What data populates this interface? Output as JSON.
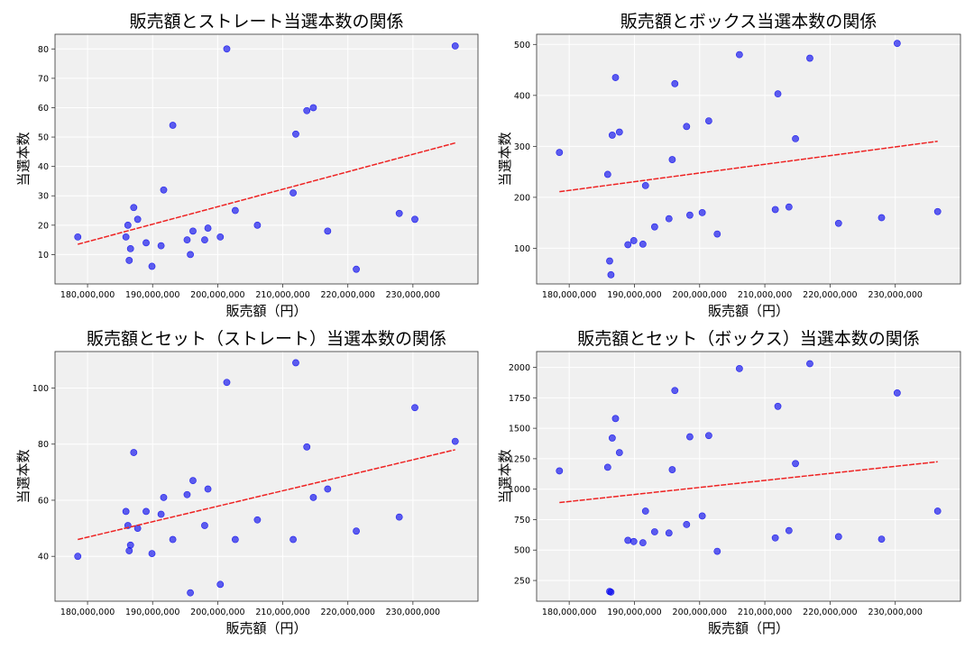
{
  "chart_data": [
    {
      "type": "scatter",
      "title": "販売額とストレート当選本数の関係",
      "xlabel": "販売額（円）",
      "ylabel": "当選本数",
      "xlim": [
        175000000,
        240000000
      ],
      "ylim": [
        0,
        85
      ],
      "xticks": [
        180000000,
        190000000,
        200000000,
        210000000,
        220000000,
        230000000
      ],
      "xtick_labels": [
        "180,000,000",
        "190,000,000",
        "200,000,000",
        "210,000,000",
        "220,000,000",
        "230,000,000"
      ],
      "yticks": [
        10,
        20,
        30,
        40,
        50,
        60,
        70,
        80
      ],
      "ytick_labels": [
        "10",
        "20",
        "30",
        "40",
        "50",
        "60",
        "70",
        "80"
      ],
      "grid": true,
      "point_color": "#0000ee",
      "trend_color": "#ee2222",
      "background": "#f0f0f0",
      "x": [
        178500000,
        185900000,
        186200000,
        186400000,
        186600000,
        187100000,
        187700000,
        189000000,
        189900000,
        191300000,
        191700000,
        193100000,
        195300000,
        195800000,
        196200000,
        198000000,
        198500000,
        200400000,
        201400000,
        202700000,
        206100000,
        211600000,
        212000000,
        213700000,
        214700000,
        216900000,
        221300000,
        227900000,
        230300000,
        236500000
      ],
      "y": [
        16,
        16,
        20,
        8,
        12,
        26,
        22,
        14,
        6,
        13,
        32,
        54,
        15,
        10,
        18,
        15,
        19,
        16,
        80,
        25,
        20,
        31,
        51,
        59,
        60,
        18,
        5,
        24,
        22,
        81
      ],
      "trend": {
        "x": [
          178500000,
          236500000
        ],
        "y": [
          13.5,
          48
        ]
      }
    },
    {
      "type": "scatter",
      "title": "販売額とボックス当選本数の関係",
      "xlabel": "販売額（円）",
      "ylabel": "当選本数",
      "xlim": [
        175000000,
        240000000
      ],
      "ylim": [
        30,
        520
      ],
      "xticks": [
        180000000,
        190000000,
        200000000,
        210000000,
        220000000,
        230000000
      ],
      "xtick_labels": [
        "180,000,000",
        "190,000,000",
        "200,000,000",
        "210,000,000",
        "220,000,000",
        "230,000,000"
      ],
      "yticks": [
        100,
        200,
        300,
        400,
        500
      ],
      "ytick_labels": [
        "100",
        "200",
        "300",
        "400",
        "500"
      ],
      "grid": true,
      "point_color": "#0000ee",
      "trend_color": "#ee2222",
      "background": "#f0f0f0",
      "x": [
        178500000,
        185900000,
        186200000,
        186400000,
        186600000,
        187100000,
        187700000,
        189000000,
        189900000,
        191300000,
        191700000,
        193100000,
        195300000,
        195800000,
        196200000,
        198000000,
        198500000,
        200400000,
        201400000,
        202700000,
        206100000,
        211600000,
        212000000,
        213700000,
        214700000,
        216900000,
        221300000,
        227900000,
        230300000,
        236500000
      ],
      "y": [
        288,
        245,
        75,
        48,
        322,
        435,
        328,
        107,
        115,
        108,
        223,
        142,
        158,
        274,
        423,
        339,
        165,
        170,
        350,
        128,
        480,
        176,
        403,
        181,
        315,
        473,
        149,
        160,
        502,
        172
      ],
      "trend": {
        "x": [
          178500000,
          236500000
        ],
        "y": [
          211,
          310
        ]
      }
    },
    {
      "type": "scatter",
      "title": "販売額とセット（ストレート）当選本数の関係",
      "xlabel": "販売額（円）",
      "ylabel": "当選本数",
      "xlim": [
        175000000,
        240000000
      ],
      "ylim": [
        24,
        113
      ],
      "xticks": [
        180000000,
        190000000,
        200000000,
        210000000,
        220000000,
        230000000
      ],
      "xtick_labels": [
        "180,000,000",
        "190,000,000",
        "200,000,000",
        "210,000,000",
        "220,000,000",
        "230,000,000"
      ],
      "yticks": [
        40,
        60,
        80,
        100
      ],
      "ytick_labels": [
        "40",
        "60",
        "80",
        "100"
      ],
      "grid": true,
      "point_color": "#0000ee",
      "trend_color": "#ee2222",
      "background": "#f0f0f0",
      "x": [
        178500000,
        185900000,
        186200000,
        186400000,
        186600000,
        187100000,
        187700000,
        189000000,
        189900000,
        191300000,
        191700000,
        193100000,
        195300000,
        195800000,
        196200000,
        198000000,
        198500000,
        200400000,
        201400000,
        202700000,
        206100000,
        211600000,
        212000000,
        213700000,
        214700000,
        216900000,
        221300000,
        227900000,
        230300000,
        236500000
      ],
      "y": [
        40,
        56,
        51,
        42,
        44,
        77,
        50,
        56,
        41,
        55,
        61,
        46,
        62,
        27,
        67,
        51,
        64,
        30,
        102,
        46,
        53,
        46,
        109,
        79,
        61,
        64,
        49,
        54,
        93,
        81
      ],
      "trend": {
        "x": [
          178500000,
          236500000
        ],
        "y": [
          46,
          78
        ]
      }
    },
    {
      "type": "scatter",
      "title": "販売額とセット（ボックス）当選本数の関係",
      "xlabel": "販売額（円）",
      "ylabel": "当選本数",
      "xlim": [
        175000000,
        240000000
      ],
      "ylim": [
        80,
        2130
      ],
      "xticks": [
        180000000,
        190000000,
        200000000,
        210000000,
        220000000,
        230000000
      ],
      "xtick_labels": [
        "180,000,000",
        "190,000,000",
        "200,000,000",
        "210,000,000",
        "220,000,000",
        "230,000,000"
      ],
      "yticks": [
        250,
        500,
        750,
        1000,
        1250,
        1500,
        1750,
        2000
      ],
      "ytick_labels": [
        "250",
        "500",
        "750",
        "1000",
        "1250",
        "1500",
        "1750",
        "2000"
      ],
      "grid": true,
      "point_color": "#0000ee",
      "trend_color": "#ee2222",
      "background": "#f0f0f0",
      "x": [
        178500000,
        185900000,
        186200000,
        186400000,
        186600000,
        187100000,
        187700000,
        189000000,
        189900000,
        191300000,
        191700000,
        193100000,
        195300000,
        195800000,
        196200000,
        198000000,
        198500000,
        200400000,
        201400000,
        202700000,
        206100000,
        211600000,
        212000000,
        213700000,
        214700000,
        216900000,
        221300000,
        227900000,
        230300000,
        236500000
      ],
      "y": [
        1150,
        1180,
        160,
        155,
        1420,
        1580,
        1300,
        580,
        570,
        560,
        820,
        650,
        640,
        1160,
        1810,
        710,
        1430,
        780,
        1440,
        490,
        1990,
        600,
        1680,
        660,
        1210,
        2030,
        610,
        590,
        1790,
        820
      ],
      "trend": {
        "x": [
          178500000,
          236500000
        ],
        "y": [
          890,
          1225
        ]
      }
    }
  ]
}
